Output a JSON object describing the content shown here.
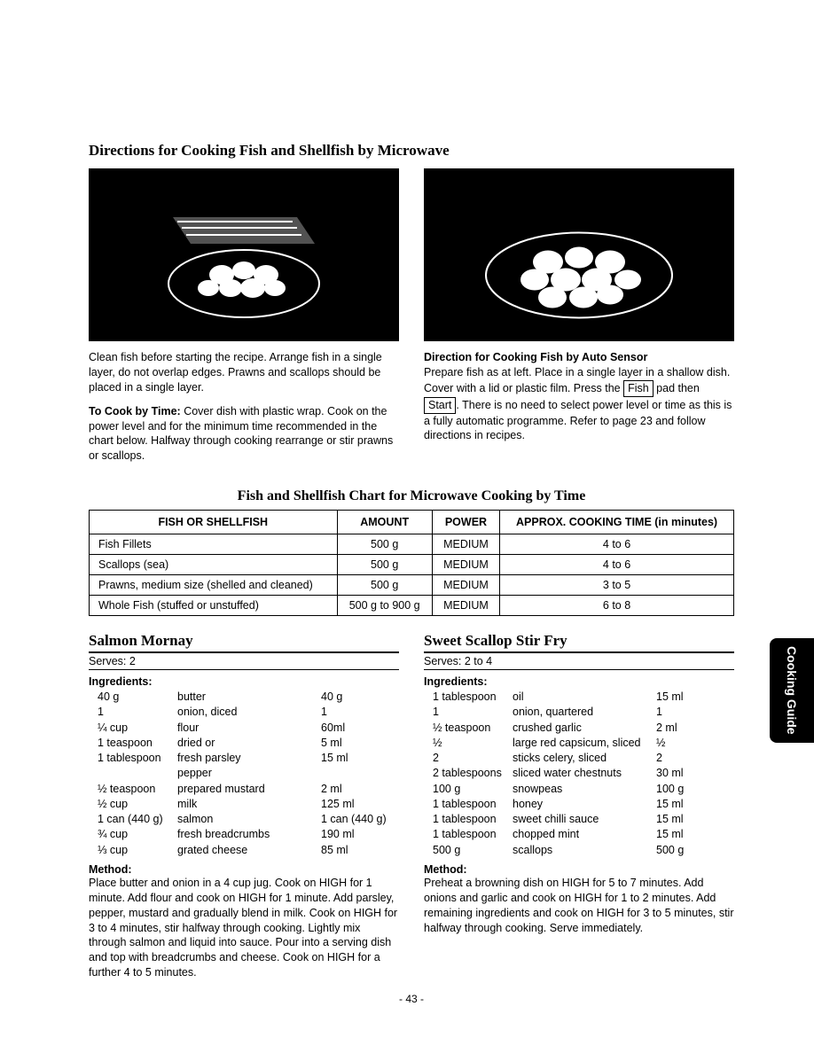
{
  "page_title": "Directions for Cooking Fish and Shellfish by Microwave",
  "left_paragraph_1": "Clean fish before starting the recipe. Arrange fish in a single layer, do not overlap edges. Prawns and scallops should be placed in a single layer.",
  "left_paragraph_2_lead": "To Cook by Time:",
  "left_paragraph_2": " Cover dish with plastic wrap. Cook on the power level and for the minimum time recommended in the chart below. Halfway through cooking rearrange or stir prawns or scallops.",
  "right_heading": "Direction for Cooking Fish by Auto Sensor",
  "right_text_before": "Prepare fish as at left. Place in a single layer in a shallow dish. Cover with a lid or plastic film. Press the ",
  "right_btn_fish": "Fish",
  "right_text_mid": " pad then ",
  "right_btn_start": "Start",
  "right_text_after": ". There is no need to select power level or time as this is a fully automatic programme. Refer to page 23 and follow directions in recipes.",
  "chart_title": "Fish and Shellfish Chart for Microwave Cooking by Time",
  "chart_headers": [
    "FISH OR SHELLFISH",
    "AMOUNT",
    "POWER",
    "APPROX. COOKING TIME (in minutes)"
  ],
  "chart_rows": [
    [
      "Fish Fillets",
      "500 g",
      "MEDIUM",
      "4  to  6"
    ],
    [
      "Scallops (sea)",
      "500 g",
      "MEDIUM",
      "4  to  6"
    ],
    [
      "Prawns, medium size (shelled and cleaned)",
      "500 g",
      "MEDIUM",
      "3  to  5"
    ],
    [
      "Whole Fish (stuffed or unstuffed)",
      "500 g to 900 g",
      "MEDIUM",
      "6  to  8"
    ]
  ],
  "recipe1": {
    "title": "Salmon Mornay",
    "serves": "Serves: 2",
    "ingredients_label": "Ingredients:",
    "rows": [
      [
        "40 g",
        "butter",
        "40 g"
      ],
      [
        "1",
        "onion, diced",
        "1"
      ],
      [
        "¼ cup",
        "flour",
        "60ml"
      ],
      [
        "1 teaspoon",
        "dried or",
        "5 ml"
      ],
      [
        "1 tablespoon",
        "fresh parsley",
        "15 ml"
      ],
      [
        "",
        "pepper",
        ""
      ],
      [
        "½ teaspoon",
        "prepared mustard",
        "2 ml"
      ],
      [
        "½ cup",
        "milk",
        "125 ml"
      ],
      [
        "1 can (440 g)",
        "salmon",
        "1 can (440 g)"
      ],
      [
        "¾ cup",
        "fresh breadcrumbs",
        "190 ml"
      ],
      [
        "⅓ cup",
        "grated cheese",
        "85 ml"
      ]
    ],
    "method_label": "Method:",
    "method": "Place butter and onion in a 4 cup jug. Cook on HIGH for 1 minute. Add flour and cook on HIGH for 1 minute. Add parsley, pepper, mustard and gradually blend in milk. Cook on HIGH for 3 to 4 minutes, stir halfway through cooking. Lightly mix through salmon and liquid into sauce. Pour into a serving dish and top with breadcrumbs and cheese. Cook on HIGH for a further 4 to 5 minutes."
  },
  "recipe2": {
    "title": "Sweet Scallop Stir Fry",
    "serves": "Serves: 2 to 4",
    "ingredients_label": "Ingredients:",
    "rows": [
      [
        "1 tablespoon",
        "oil",
        "15 ml"
      ],
      [
        "1",
        "onion, quartered",
        "1"
      ],
      [
        "½ teaspoon",
        "crushed garlic",
        "2 ml"
      ],
      [
        "½",
        "large red capsicum, sliced",
        "½"
      ],
      [
        "2",
        "sticks celery, sliced",
        "2"
      ],
      [
        "2 tablespoons",
        "sliced water chestnuts",
        "30 ml"
      ],
      [
        "100 g",
        "snowpeas",
        "100 g"
      ],
      [
        "1 tablespoon",
        "honey",
        "15 ml"
      ],
      [
        "1 tablespoon",
        "sweet chilli sauce",
        "15 ml"
      ],
      [
        "1 tablespoon",
        "chopped mint",
        "15 ml"
      ],
      [
        "500 g",
        "scallops",
        "500 g"
      ]
    ],
    "method_label": "Method:",
    "method": "Preheat a browning dish on HIGH for 5 to 7 minutes. Add onions and garlic and cook on HIGH for 1 to 2 minutes. Add remaining ingredients and cook on HIGH for 3 to 5 minutes, stir halfway through cooking. Serve immediately."
  },
  "side_tab": "Cooking Guide",
  "page_number": "- 43 -"
}
